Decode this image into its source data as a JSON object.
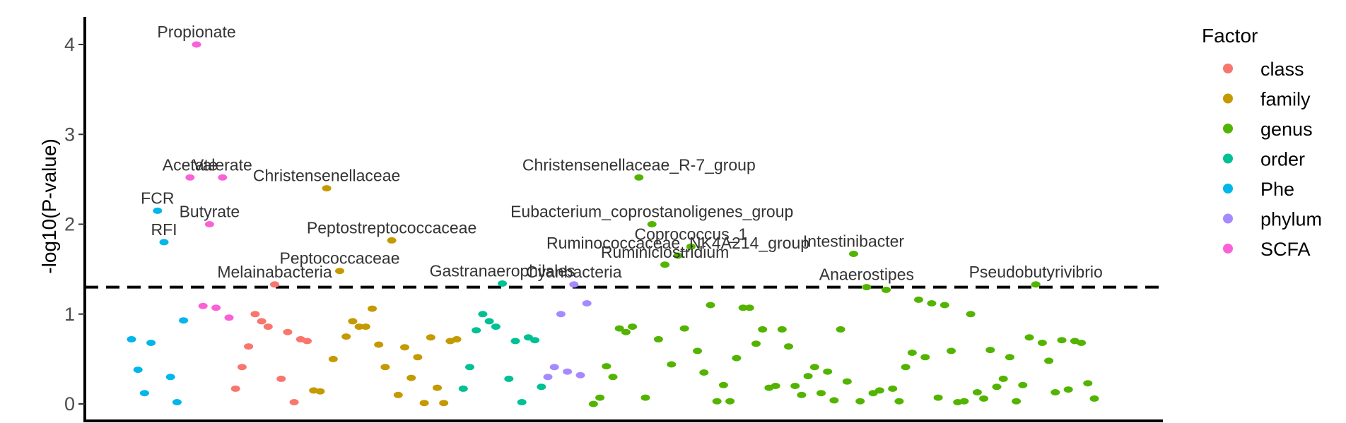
{
  "chart_data": {
    "type": "scatter",
    "title": "",
    "xlabel": "",
    "ylabel": "-log10(P-value)",
    "ylim": [
      -0.08,
      4.3
    ],
    "yticks": [
      0,
      1,
      2,
      3,
      4
    ],
    "threshold": 1.3,
    "grid": false,
    "legend": {
      "title": "Factor",
      "placement": "right",
      "entries": [
        {
          "name": "class",
          "color": "#F8766D"
        },
        {
          "name": "family",
          "color": "#C49A00"
        },
        {
          "name": "genus",
          "color": "#53B400"
        },
        {
          "name": "order",
          "color": "#00C094"
        },
        {
          "name": "Phe",
          "color": "#00B6EB"
        },
        {
          "name": "phylum",
          "color": "#A58AFF"
        },
        {
          "name": "SCFA",
          "color": "#FB61D7"
        }
      ]
    },
    "x_order": [
      "Phe",
      "SCFA",
      "class",
      "family",
      "order",
      "phylum",
      "genus"
    ],
    "series": [
      {
        "name": "Phe",
        "points": [
          [
            1,
            0.72
          ],
          [
            2,
            0.38
          ],
          [
            3,
            0.12
          ],
          [
            4,
            0.68
          ],
          [
            5,
            2.15
          ],
          [
            6,
            1.8
          ],
          [
            7,
            0.3
          ],
          [
            8,
            0.02
          ],
          [
            9,
            0.93
          ]
        ]
      },
      {
        "name": "SCFA",
        "points": [
          [
            10,
            2.52
          ],
          [
            11,
            4.0
          ],
          [
            12,
            1.09
          ],
          [
            13,
            2.0
          ],
          [
            14,
            1.07
          ],
          [
            15,
            2.52
          ],
          [
            16,
            0.96
          ]
        ]
      },
      {
        "name": "class",
        "points": [
          [
            17,
            0.17
          ],
          [
            18,
            0.41
          ],
          [
            19,
            0.64
          ],
          [
            20,
            1.0
          ],
          [
            21,
            0.92
          ],
          [
            22,
            0.86
          ],
          [
            23,
            1.33
          ],
          [
            24,
            0.28
          ],
          [
            25,
            0.8
          ],
          [
            26,
            0.02
          ],
          [
            27,
            0.72
          ],
          [
            28,
            0.7
          ]
        ]
      },
      {
        "name": "family",
        "points": [
          [
            29,
            0.15
          ],
          [
            30,
            0.14
          ],
          [
            31,
            2.4
          ],
          [
            32,
            0.5
          ],
          [
            33,
            1.48
          ],
          [
            34,
            0.75
          ],
          [
            35,
            0.92
          ],
          [
            36,
            0.86
          ],
          [
            37,
            0.86
          ],
          [
            38,
            1.06
          ],
          [
            39,
            0.66
          ],
          [
            40,
            0.41
          ],
          [
            41,
            1.82
          ],
          [
            42,
            0.1
          ],
          [
            43,
            0.63
          ],
          [
            44,
            0.29
          ],
          [
            45,
            0.52
          ],
          [
            46,
            0.01
          ],
          [
            47,
            0.74
          ],
          [
            48,
            0.18
          ],
          [
            49,
            0.01
          ],
          [
            50,
            0.7
          ],
          [
            51,
            0.72
          ]
        ]
      },
      {
        "name": "order",
        "points": [
          [
            52,
            0.17
          ],
          [
            53,
            0.41
          ],
          [
            54,
            0.82
          ],
          [
            55,
            1.0
          ],
          [
            56,
            0.92
          ],
          [
            57,
            0.86
          ],
          [
            58,
            1.34
          ],
          [
            59,
            0.28
          ],
          [
            60,
            0.7
          ],
          [
            61,
            0.02
          ],
          [
            62,
            0.74
          ],
          [
            63,
            0.71
          ],
          [
            64,
            0.19
          ]
        ]
      },
      {
        "name": "phylum",
        "points": [
          [
            65,
            0.3
          ],
          [
            66,
            0.41
          ],
          [
            67,
            1.0
          ],
          [
            68,
            0.36
          ],
          [
            69,
            1.33
          ],
          [
            70,
            0.32
          ],
          [
            71,
            1.12
          ]
        ]
      },
      {
        "name": "genus",
        "points": [
          [
            72,
            0.0
          ],
          [
            73,
            0.07
          ],
          [
            74,
            0.42
          ],
          [
            75,
            0.3
          ],
          [
            76,
            0.84
          ],
          [
            77,
            0.8
          ],
          [
            78,
            0.86
          ],
          [
            79,
            2.52
          ],
          [
            80,
            0.07
          ],
          [
            81,
            2.0
          ],
          [
            82,
            0.72
          ],
          [
            83,
            1.55
          ],
          [
            84,
            0.44
          ],
          [
            85,
            1.65
          ],
          [
            86,
            0.84
          ],
          [
            87,
            1.75
          ],
          [
            88,
            0.59
          ],
          [
            89,
            0.35
          ],
          [
            90,
            1.1
          ],
          [
            91,
            0.03
          ],
          [
            92,
            0.21
          ],
          [
            93,
            0.03
          ],
          [
            94,
            0.51
          ],
          [
            95,
            1.07
          ],
          [
            96,
            1.07
          ],
          [
            97,
            0.67
          ],
          [
            98,
            0.83
          ],
          [
            99,
            0.18
          ],
          [
            100,
            0.2
          ],
          [
            101,
            0.83
          ],
          [
            102,
            0.64
          ],
          [
            103,
            0.2
          ],
          [
            104,
            0.1
          ],
          [
            105,
            0.31
          ],
          [
            106,
            0.41
          ],
          [
            107,
            0.12
          ],
          [
            108,
            0.36
          ],
          [
            109,
            0.04
          ],
          [
            110,
            0.83
          ],
          [
            111,
            0.25
          ],
          [
            112,
            1.67
          ],
          [
            113,
            0.03
          ],
          [
            114,
            1.3
          ],
          [
            115,
            0.12
          ],
          [
            116,
            0.15
          ],
          [
            117,
            1.27
          ],
          [
            118,
            0.17
          ],
          [
            119,
            0.03
          ],
          [
            120,
            0.41
          ],
          [
            121,
            0.57
          ],
          [
            122,
            1.16
          ],
          [
            123,
            0.52
          ],
          [
            124,
            1.12
          ],
          [
            125,
            0.07
          ],
          [
            126,
            1.1
          ],
          [
            127,
            0.59
          ],
          [
            128,
            0.02
          ],
          [
            129,
            0.03
          ],
          [
            130,
            1.0
          ],
          [
            131,
            0.13
          ],
          [
            132,
            0.06
          ],
          [
            133,
            0.6
          ],
          [
            134,
            0.19
          ],
          [
            135,
            0.28
          ],
          [
            136,
            0.52
          ],
          [
            137,
            0.03
          ],
          [
            138,
            0.21
          ],
          [
            139,
            0.74
          ],
          [
            140,
            1.33
          ],
          [
            141,
            0.68
          ],
          [
            142,
            0.48
          ],
          [
            143,
            0.13
          ],
          [
            144,
            0.71
          ],
          [
            145,
            0.16
          ],
          [
            146,
            0.7
          ],
          [
            147,
            0.68
          ],
          [
            148,
            0.23
          ],
          [
            149,
            0.06
          ]
        ]
      }
    ],
    "annotations": [
      {
        "text": "Propionate",
        "x": 11,
        "y": 4.0
      },
      {
        "text": "Acetate",
        "x": 10,
        "y": 2.52
      },
      {
        "text": "Valerate",
        "x": 15,
        "y": 2.52
      },
      {
        "text": "FCR",
        "x": 5,
        "y": 2.15
      },
      {
        "text": "Butyrate",
        "x": 13,
        "y": 2.0
      },
      {
        "text": "RFI",
        "x": 6,
        "y": 1.8
      },
      {
        "text": "Christensenellaceae",
        "x": 31,
        "y": 2.4
      },
      {
        "text": "Peptostreptococcaceae",
        "x": 41,
        "y": 1.82
      },
      {
        "text": "Peptococcaceae",
        "x": 33,
        "y": 1.48
      },
      {
        "text": "Melainabacteria",
        "x": 23,
        "y": 1.33
      },
      {
        "text": "Gastranaerophilales",
        "x": 58,
        "y": 1.34
      },
      {
        "text": "Cyanbacteria",
        "x": 69,
        "y": 1.33
      },
      {
        "text": "Christensenellaceae_R-7_group",
        "x": 79,
        "y": 2.52
      },
      {
        "text": "Eubacterium_coprostanoligenes_group",
        "x": 81,
        "y": 2.0
      },
      {
        "text": "Coprococcus_1",
        "x": 87,
        "y": 1.75
      },
      {
        "text": "Ruminococcaceae_NK4A214_group",
        "x": 85,
        "y": 1.65
      },
      {
        "text": "Ruminiclostridium",
        "x": 83,
        "y": 1.55
      },
      {
        "text": "Intestinibacter",
        "x": 112,
        "y": 1.67
      },
      {
        "text": "Anaerostipes",
        "x": 114,
        "y": 1.3
      },
      {
        "text": "Pseudobutyrivibrio",
        "x": 140,
        "y": 1.33
      }
    ]
  }
}
